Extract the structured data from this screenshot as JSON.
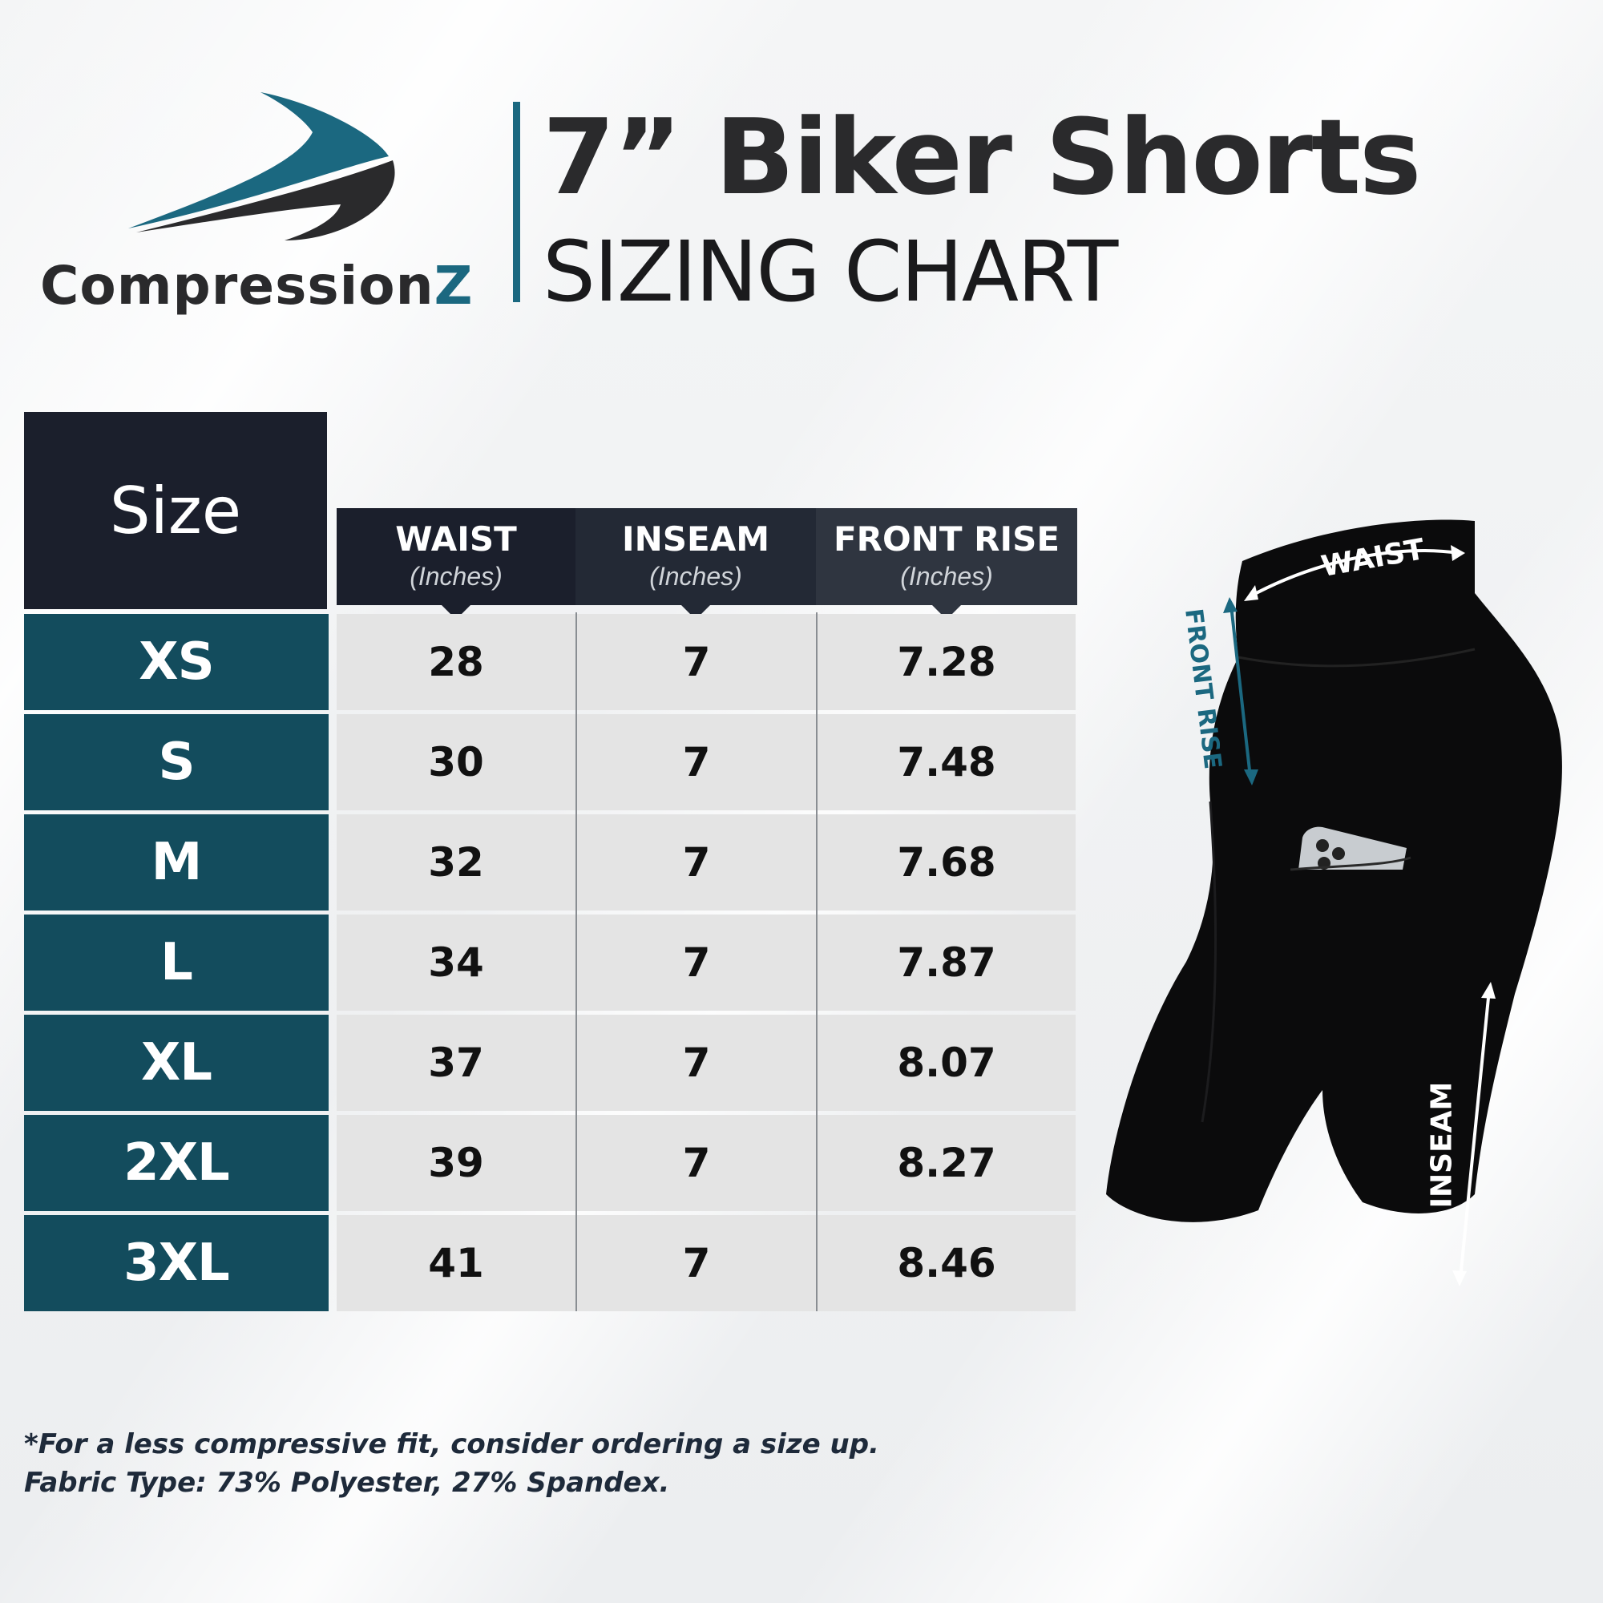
{
  "brand": {
    "name_main": "Compression",
    "name_accent": "Z"
  },
  "header": {
    "title": "7” Biker Shorts",
    "subtitle": "SIZING CHART"
  },
  "colors": {
    "teal": "#1b6880",
    "dark_teal": "#134c5d",
    "header_dark": "#1b1f2c",
    "header_mid": "#232935",
    "header_light": "#2f3540"
  },
  "table": {
    "size_header": "Size",
    "columns": [
      {
        "label": "WAIST",
        "unit": "(Inches)"
      },
      {
        "label": "INSEAM",
        "unit": "(Inches)"
      },
      {
        "label": "FRONT RISE",
        "unit": "(Inches)"
      }
    ],
    "rows": [
      {
        "size": "XS",
        "waist": "28",
        "inseam": "7",
        "front_rise": "7.28"
      },
      {
        "size": "S",
        "waist": "30",
        "inseam": "7",
        "front_rise": "7.48"
      },
      {
        "size": "M",
        "waist": "32",
        "inseam": "7",
        "front_rise": "7.68"
      },
      {
        "size": "L",
        "waist": "34",
        "inseam": "7",
        "front_rise": "7.87"
      },
      {
        "size": "XL",
        "waist": "37",
        "inseam": "7",
        "front_rise": "8.07"
      },
      {
        "size": "2XL",
        "waist": "39",
        "inseam": "7",
        "front_rise": "8.27"
      },
      {
        "size": "3XL",
        "waist": "41",
        "inseam": "7",
        "front_rise": "8.46"
      }
    ]
  },
  "illustration": {
    "labels": {
      "waist": "WAIST",
      "front_rise": "FRONT RISE",
      "inseam": "INSEAM"
    }
  },
  "notes": [
    "*For a less compressive fit, consider ordering a size up.",
    "Fabric Type: 73% Polyester, 27% Spandex."
  ]
}
